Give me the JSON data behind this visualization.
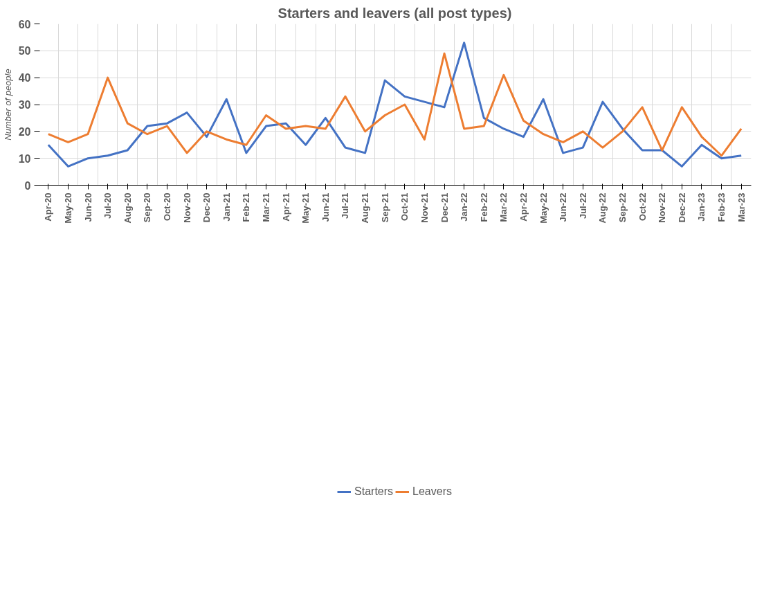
{
  "chart_data": {
    "type": "line",
    "title": "Starters and leavers (all post types)",
    "ylabel": "Number of people",
    "categories": [
      "Apr-20",
      "May-20",
      "Jun-20",
      "Jul-20",
      "Aug-20",
      "Sep-20",
      "Oct-20",
      "Nov-20",
      "Dec-20",
      "Jan-21",
      "Feb-21",
      "Mar-21",
      "Apr-21",
      "May-21",
      "Jun-21",
      "Jul-21",
      "Aug-21",
      "Sep-21",
      "Oct-21",
      "Nov-21",
      "Dec-21",
      "Jan-22",
      "Feb-22",
      "Mar-22",
      "Apr-22",
      "May-22",
      "Jun-22",
      "Jul-22",
      "Aug-22",
      "Sep-22",
      "Oct-22",
      "Nov-22",
      "Dec-22",
      "Jan-23",
      "Feb-23",
      "Mar-23"
    ],
    "series": [
      {
        "name": "Starters",
        "color": "#4472c4",
        "values": [
          15,
          7,
          10,
          11,
          13,
          22,
          23,
          27,
          18,
          32,
          12,
          22,
          23,
          15,
          25,
          14,
          12,
          39,
          33,
          31,
          29,
          53,
          25,
          21,
          18,
          32,
          12,
          14,
          31,
          21,
          13,
          13,
          7,
          15,
          10,
          11
        ]
      },
      {
        "name": "Leavers",
        "color": "#ed7d31",
        "values": [
          19,
          16,
          19,
          40,
          23,
          19,
          22,
          12,
          20,
          17,
          15,
          26,
          21,
          22,
          21,
          33,
          20,
          26,
          30,
          17,
          49,
          21,
          22,
          41,
          24,
          19,
          16,
          20,
          14,
          20,
          29,
          13,
          29,
          18,
          11,
          21
        ]
      }
    ],
    "ylim": [
      0,
      60
    ],
    "yticks": [
      0,
      10,
      20,
      30,
      40,
      50,
      60
    ],
    "grid": true,
    "legend": "bottom",
    "marker": "none",
    "line_style": "solid"
  }
}
